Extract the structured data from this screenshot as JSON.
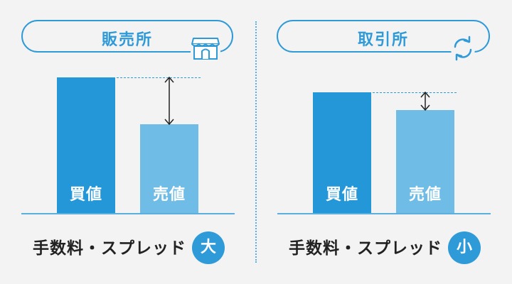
{
  "panels": {
    "left": {
      "title": "販売所",
      "icon": "store-icon",
      "buy_label": "買値",
      "sell_label": "売値",
      "caption": "手数料・スプレッド",
      "size_badge": "大"
    },
    "right": {
      "title": "取引所",
      "icon": "exchange-arrows-icon",
      "buy_label": "買値",
      "sell_label": "売値",
      "caption": "手数料・スプレッド",
      "size_badge": "小"
    }
  },
  "colors": {
    "accent": "#2f9ad8",
    "buy_bar": "#2497d9",
    "sell_bar": "#6fbce6",
    "background": "#f3f3f3"
  }
}
